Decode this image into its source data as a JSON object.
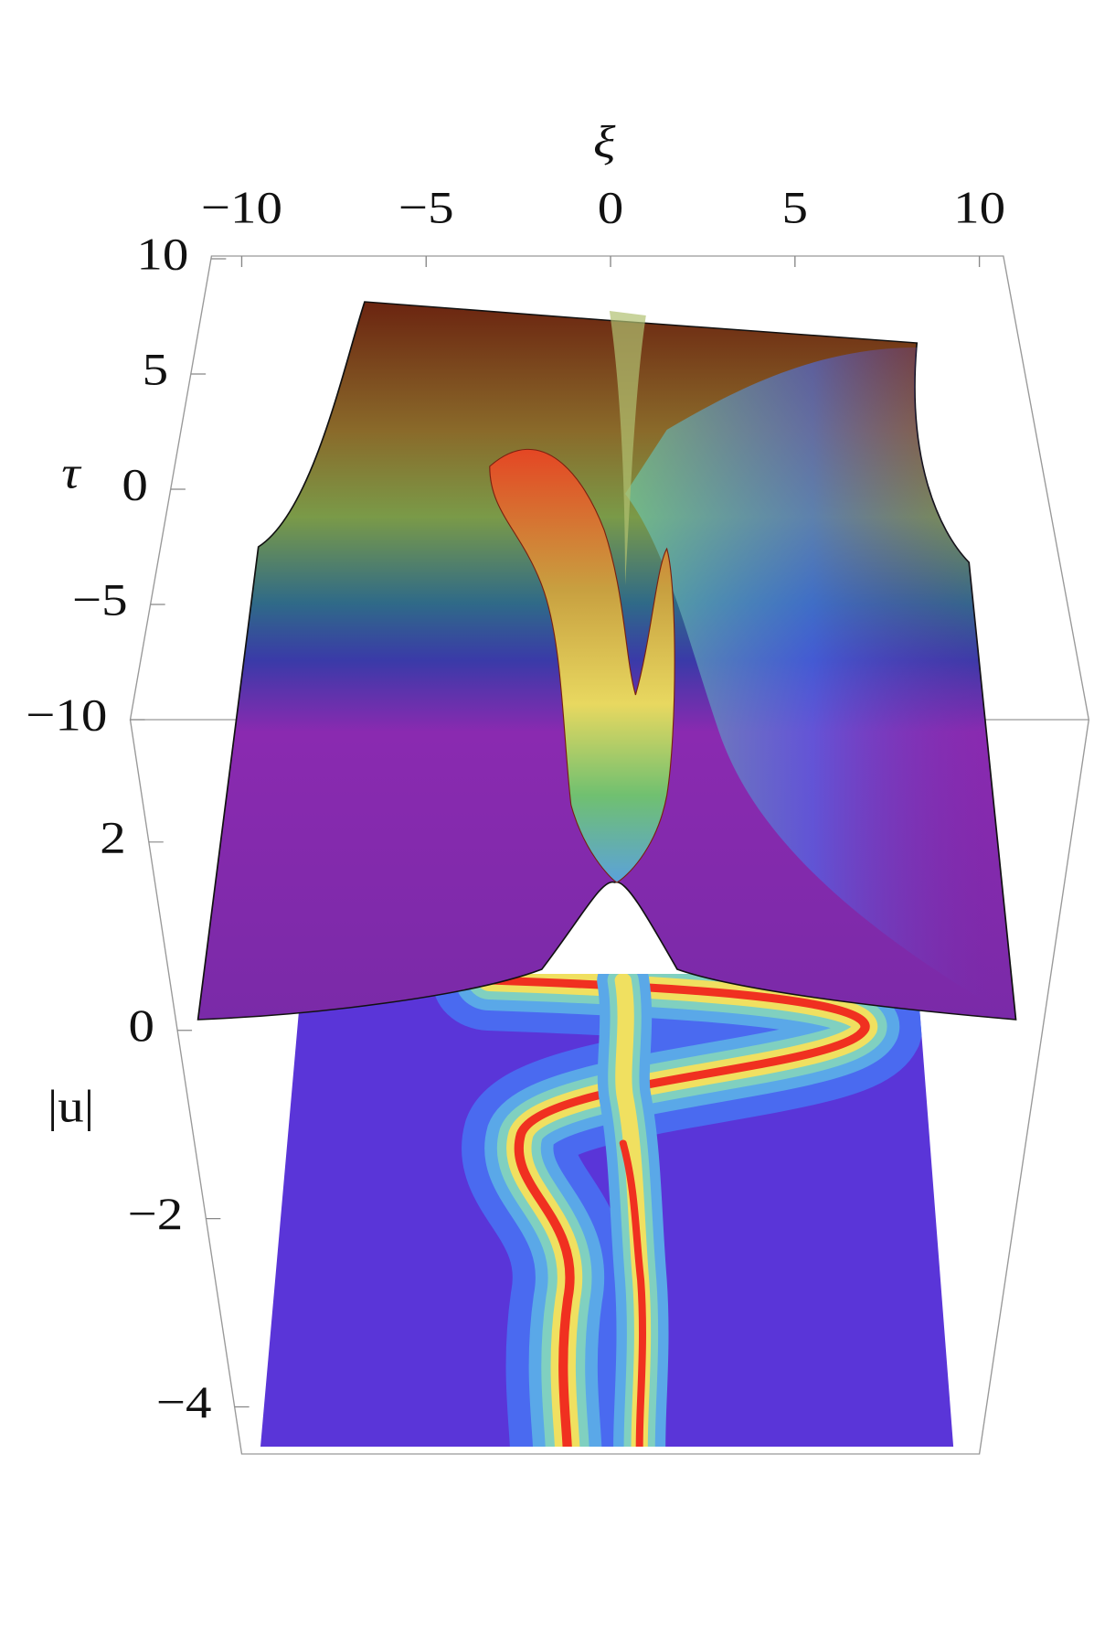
{
  "chart_data": {
    "type": "surface3d",
    "xlabel": "ξ",
    "ylabel": "τ",
    "zlabel": "|u|",
    "xlim": [
      -10,
      10
    ],
    "xticks": [
      {
        "value": -10,
        "label": "−10"
      },
      {
        "value": -5,
        "label": "−5"
      },
      0,
      5,
      10
    ],
    "ylim": [
      -10,
      10
    ],
    "yticks": [
      {
        "value": -10,
        "label": "−10"
      },
      {
        "value": -5,
        "label": "−5"
      },
      0,
      5,
      10
    ],
    "zlim": [
      -4.5,
      3.3
    ],
    "zticks": [
      {
        "value": -4,
        "label": "−4"
      },
      {
        "value": -2,
        "label": "−2"
      },
      0,
      2
    ]
  }
}
